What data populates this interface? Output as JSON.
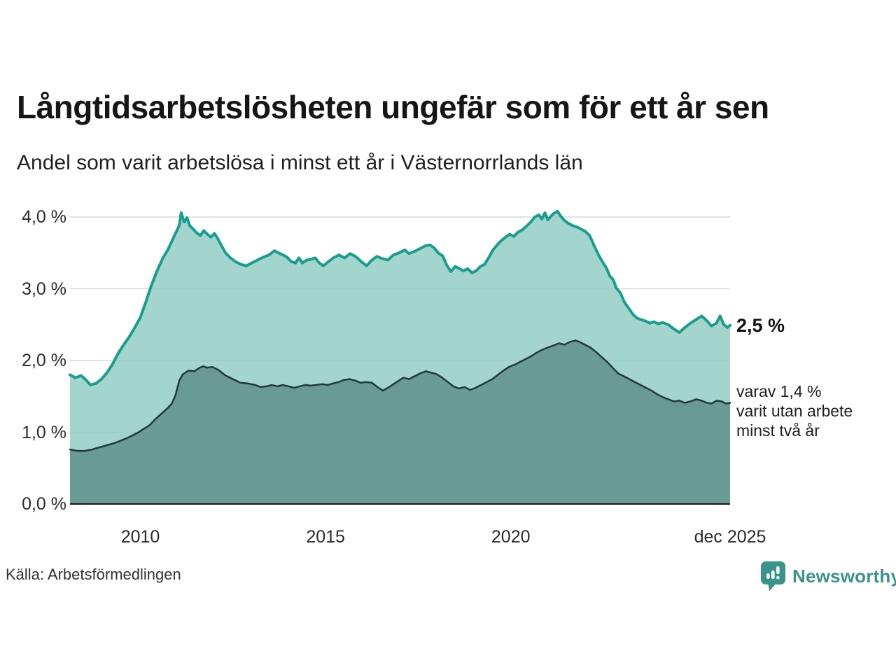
{
  "chart_data": {
    "type": "area",
    "title": "Långtidsarbetslösheten ungefär som för ett år sen",
    "subtitle": "Andel som varit arbetslösa i minst ett år i Västernorrlands län",
    "x_range": [
      2008.1,
      2025.92
    ],
    "y_axis": {
      "max_tick": 4.0,
      "ticks": [
        {
          "value": 0.0,
          "label": "0,0 %"
        },
        {
          "value": 1.0,
          "label": "1,0 %"
        },
        {
          "value": 2.0,
          "label": "2,0 %"
        },
        {
          "value": 3.0,
          "label": "3,0 %"
        },
        {
          "value": 4.0,
          "label": "4,0 %"
        }
      ]
    },
    "x_axis": {
      "ticks": [
        {
          "value": 2010,
          "label": "2010"
        },
        {
          "value": 2015,
          "label": "2015"
        },
        {
          "value": 2020,
          "label": "2020"
        },
        {
          "value": 2025.92,
          "label": "dec 2025"
        }
      ]
    },
    "colors": {
      "grid": "#d8d8d8",
      "axis": "#1a1a1a",
      "accent": "#189e8e",
      "brand": "#3a938b"
    },
    "legend_position": "right-annotations",
    "grid": true,
    "series": [
      {
        "name": "arbetslösa minst ett år",
        "line": "#189e8e",
        "line_width": 4,
        "fill": "#8dcbc1",
        "fill_opacity": 0.8,
        "points": [
          [
            2008.1,
            1.8
          ],
          [
            2008.25,
            1.76
          ],
          [
            2008.4,
            1.79
          ],
          [
            2008.55,
            1.72
          ],
          [
            2008.65,
            1.66
          ],
          [
            2008.8,
            1.68
          ],
          [
            2008.95,
            1.74
          ],
          [
            2009.1,
            1.83
          ],
          [
            2009.25,
            1.95
          ],
          [
            2009.4,
            2.1
          ],
          [
            2009.55,
            2.22
          ],
          [
            2009.7,
            2.33
          ],
          [
            2009.85,
            2.46
          ],
          [
            2010.0,
            2.6
          ],
          [
            2010.15,
            2.82
          ],
          [
            2010.3,
            3.05
          ],
          [
            2010.45,
            3.25
          ],
          [
            2010.6,
            3.42
          ],
          [
            2010.75,
            3.55
          ],
          [
            2010.9,
            3.72
          ],
          [
            2011.05,
            3.88
          ],
          [
            2011.1,
            4.06
          ],
          [
            2011.18,
            3.93
          ],
          [
            2011.26,
            3.99
          ],
          [
            2011.33,
            3.88
          ],
          [
            2011.43,
            3.83
          ],
          [
            2011.52,
            3.78
          ],
          [
            2011.62,
            3.74
          ],
          [
            2011.71,
            3.81
          ],
          [
            2011.81,
            3.76
          ],
          [
            2011.9,
            3.72
          ],
          [
            2012.0,
            3.77
          ],
          [
            2012.09,
            3.7
          ],
          [
            2012.18,
            3.61
          ],
          [
            2012.3,
            3.5
          ],
          [
            2012.41,
            3.44
          ],
          [
            2012.56,
            3.38
          ],
          [
            2012.71,
            3.34
          ],
          [
            2012.86,
            3.32
          ],
          [
            2013.01,
            3.36
          ],
          [
            2013.16,
            3.4
          ],
          [
            2013.32,
            3.44
          ],
          [
            2013.47,
            3.47
          ],
          [
            2013.62,
            3.53
          ],
          [
            2013.73,
            3.5
          ],
          [
            2013.85,
            3.47
          ],
          [
            2013.96,
            3.44
          ],
          [
            2014.07,
            3.38
          ],
          [
            2014.19,
            3.36
          ],
          [
            2014.28,
            3.43
          ],
          [
            2014.37,
            3.36
          ],
          [
            2014.49,
            3.4
          ],
          [
            2014.6,
            3.41
          ],
          [
            2014.72,
            3.43
          ],
          [
            2014.83,
            3.36
          ],
          [
            2014.94,
            3.32
          ],
          [
            2015.06,
            3.37
          ],
          [
            2015.21,
            3.43
          ],
          [
            2015.36,
            3.47
          ],
          [
            2015.51,
            3.43
          ],
          [
            2015.66,
            3.49
          ],
          [
            2015.81,
            3.45
          ],
          [
            2015.96,
            3.38
          ],
          [
            2016.11,
            3.32
          ],
          [
            2016.23,
            3.39
          ],
          [
            2016.38,
            3.45
          ],
          [
            2016.53,
            3.42
          ],
          [
            2016.68,
            3.4
          ],
          [
            2016.83,
            3.47
          ],
          [
            2016.98,
            3.5
          ],
          [
            2017.14,
            3.54
          ],
          [
            2017.25,
            3.49
          ],
          [
            2017.4,
            3.52
          ],
          [
            2017.55,
            3.56
          ],
          [
            2017.7,
            3.6
          ],
          [
            2017.82,
            3.61
          ],
          [
            2017.93,
            3.57
          ],
          [
            2018.04,
            3.5
          ],
          [
            2018.16,
            3.46
          ],
          [
            2018.27,
            3.33
          ],
          [
            2018.38,
            3.24
          ],
          [
            2018.5,
            3.31
          ],
          [
            2018.61,
            3.28
          ],
          [
            2018.72,
            3.25
          ],
          [
            2018.84,
            3.28
          ],
          [
            2018.95,
            3.22
          ],
          [
            2019.06,
            3.25
          ],
          [
            2019.18,
            3.31
          ],
          [
            2019.29,
            3.34
          ],
          [
            2019.4,
            3.43
          ],
          [
            2019.52,
            3.54
          ],
          [
            2019.63,
            3.61
          ],
          [
            2019.74,
            3.67
          ],
          [
            2019.86,
            3.72
          ],
          [
            2019.97,
            3.76
          ],
          [
            2020.08,
            3.73
          ],
          [
            2020.2,
            3.79
          ],
          [
            2020.31,
            3.82
          ],
          [
            2020.42,
            3.87
          ],
          [
            2020.54,
            3.93
          ],
          [
            2020.65,
            4.0
          ],
          [
            2020.76,
            4.03
          ],
          [
            2020.84,
            3.97
          ],
          [
            2020.92,
            4.06
          ],
          [
            2021.0,
            3.96
          ],
          [
            2021.08,
            4.01
          ],
          [
            2021.16,
            4.05
          ],
          [
            2021.26,
            4.08
          ],
          [
            2021.35,
            4.01
          ],
          [
            2021.45,
            3.95
          ],
          [
            2021.56,
            3.91
          ],
          [
            2021.67,
            3.88
          ],
          [
            2021.79,
            3.86
          ],
          [
            2021.9,
            3.83
          ],
          [
            2022.01,
            3.8
          ],
          [
            2022.13,
            3.74
          ],
          [
            2022.24,
            3.61
          ],
          [
            2022.35,
            3.49
          ],
          [
            2022.47,
            3.38
          ],
          [
            2022.58,
            3.29
          ],
          [
            2022.67,
            3.18
          ],
          [
            2022.76,
            3.13
          ],
          [
            2022.85,
            3.01
          ],
          [
            2022.96,
            2.94
          ],
          [
            2023.07,
            2.81
          ],
          [
            2023.18,
            2.73
          ],
          [
            2023.3,
            2.64
          ],
          [
            2023.41,
            2.59
          ],
          [
            2023.52,
            2.57
          ],
          [
            2023.64,
            2.55
          ],
          [
            2023.75,
            2.52
          ],
          [
            2023.86,
            2.54
          ],
          [
            2023.98,
            2.51
          ],
          [
            2024.1,
            2.53
          ],
          [
            2024.25,
            2.5
          ],
          [
            2024.4,
            2.44
          ],
          [
            2024.55,
            2.39
          ],
          [
            2024.7,
            2.46
          ],
          [
            2024.85,
            2.52
          ],
          [
            2025.0,
            2.57
          ],
          [
            2025.15,
            2.62
          ],
          [
            2025.3,
            2.55
          ],
          [
            2025.42,
            2.48
          ],
          [
            2025.55,
            2.52
          ],
          [
            2025.65,
            2.62
          ],
          [
            2025.75,
            2.5
          ],
          [
            2025.85,
            2.46
          ],
          [
            2025.92,
            2.49
          ]
        ]
      },
      {
        "name": "varav utan arbete minst två år",
        "line": "#1e3a3b",
        "line_width": 2.5,
        "fill": "#63938e",
        "fill_opacity": 0.9,
        "points": [
          [
            2008.1,
            0.76
          ],
          [
            2008.3,
            0.74
          ],
          [
            2008.5,
            0.74
          ],
          [
            2008.7,
            0.76
          ],
          [
            2008.9,
            0.79
          ],
          [
            2009.1,
            0.82
          ],
          [
            2009.3,
            0.85
          ],
          [
            2009.5,
            0.89
          ],
          [
            2009.65,
            0.92
          ],
          [
            2009.8,
            0.96
          ],
          [
            2009.95,
            1.0
          ],
          [
            2010.1,
            1.05
          ],
          [
            2010.25,
            1.1
          ],
          [
            2010.4,
            1.18
          ],
          [
            2010.55,
            1.25
          ],
          [
            2010.7,
            1.32
          ],
          [
            2010.85,
            1.4
          ],
          [
            2010.95,
            1.52
          ],
          [
            2011.05,
            1.72
          ],
          [
            2011.15,
            1.81
          ],
          [
            2011.3,
            1.86
          ],
          [
            2011.45,
            1.85
          ],
          [
            2011.6,
            1.9
          ],
          [
            2011.7,
            1.92
          ],
          [
            2011.8,
            1.9
          ],
          [
            2011.95,
            1.91
          ],
          [
            2012.1,
            1.87
          ],
          [
            2012.3,
            1.79
          ],
          [
            2012.5,
            1.74
          ],
          [
            2012.7,
            1.69
          ],
          [
            2012.9,
            1.68
          ],
          [
            2013.1,
            1.66
          ],
          [
            2013.25,
            1.63
          ],
          [
            2013.4,
            1.64
          ],
          [
            2013.55,
            1.66
          ],
          [
            2013.7,
            1.64
          ],
          [
            2013.85,
            1.66
          ],
          [
            2014.0,
            1.64
          ],
          [
            2014.15,
            1.62
          ],
          [
            2014.3,
            1.64
          ],
          [
            2014.45,
            1.66
          ],
          [
            2014.6,
            1.65
          ],
          [
            2014.75,
            1.66
          ],
          [
            2014.9,
            1.67
          ],
          [
            2015.05,
            1.66
          ],
          [
            2015.2,
            1.68
          ],
          [
            2015.35,
            1.7
          ],
          [
            2015.5,
            1.73
          ],
          [
            2015.65,
            1.74
          ],
          [
            2015.8,
            1.72
          ],
          [
            2015.95,
            1.69
          ],
          [
            2016.1,
            1.7
          ],
          [
            2016.25,
            1.69
          ],
          [
            2016.4,
            1.63
          ],
          [
            2016.55,
            1.58
          ],
          [
            2016.65,
            1.61
          ],
          [
            2016.8,
            1.66
          ],
          [
            2016.95,
            1.71
          ],
          [
            2017.1,
            1.76
          ],
          [
            2017.25,
            1.74
          ],
          [
            2017.4,
            1.78
          ],
          [
            2017.55,
            1.82
          ],
          [
            2017.7,
            1.85
          ],
          [
            2017.85,
            1.83
          ],
          [
            2018.0,
            1.81
          ],
          [
            2018.15,
            1.76
          ],
          [
            2018.3,
            1.7
          ],
          [
            2018.45,
            1.64
          ],
          [
            2018.6,
            1.61
          ],
          [
            2018.75,
            1.63
          ],
          [
            2018.9,
            1.59
          ],
          [
            2019.05,
            1.62
          ],
          [
            2019.2,
            1.66
          ],
          [
            2019.35,
            1.7
          ],
          [
            2019.5,
            1.74
          ],
          [
            2019.65,
            1.8
          ],
          [
            2019.8,
            1.86
          ],
          [
            2019.95,
            1.91
          ],
          [
            2020.1,
            1.94
          ],
          [
            2020.25,
            1.98
          ],
          [
            2020.4,
            2.02
          ],
          [
            2020.55,
            2.06
          ],
          [
            2020.7,
            2.11
          ],
          [
            2020.85,
            2.15
          ],
          [
            2021.0,
            2.18
          ],
          [
            2021.15,
            2.21
          ],
          [
            2021.3,
            2.24
          ],
          [
            2021.45,
            2.22
          ],
          [
            2021.6,
            2.26
          ],
          [
            2021.75,
            2.28
          ],
          [
            2021.85,
            2.26
          ],
          [
            2022.0,
            2.22
          ],
          [
            2022.15,
            2.18
          ],
          [
            2022.3,
            2.12
          ],
          [
            2022.45,
            2.05
          ],
          [
            2022.6,
            1.98
          ],
          [
            2022.75,
            1.9
          ],
          [
            2022.9,
            1.82
          ],
          [
            2023.05,
            1.78
          ],
          [
            2023.2,
            1.74
          ],
          [
            2023.35,
            1.7
          ],
          [
            2023.5,
            1.66
          ],
          [
            2023.65,
            1.62
          ],
          [
            2023.8,
            1.58
          ],
          [
            2023.95,
            1.53
          ],
          [
            2024.1,
            1.49
          ],
          [
            2024.25,
            1.46
          ],
          [
            2024.4,
            1.43
          ],
          [
            2024.55,
            1.44
          ],
          [
            2024.7,
            1.41
          ],
          [
            2024.85,
            1.43
          ],
          [
            2025.0,
            1.46
          ],
          [
            2025.15,
            1.44
          ],
          [
            2025.3,
            1.41
          ],
          [
            2025.42,
            1.4
          ],
          [
            2025.55,
            1.44
          ],
          [
            2025.7,
            1.43
          ],
          [
            2025.8,
            1.4
          ],
          [
            2025.92,
            1.41
          ]
        ]
      }
    ]
  },
  "annotations": {
    "value_label": "2,5 %",
    "secondary_label": "varav 1,4 %\nvarit utan arbete\nminst två år"
  },
  "footer": {
    "source": "Källa: Arbetsförmedlingen",
    "brand": "Newsworthy"
  }
}
